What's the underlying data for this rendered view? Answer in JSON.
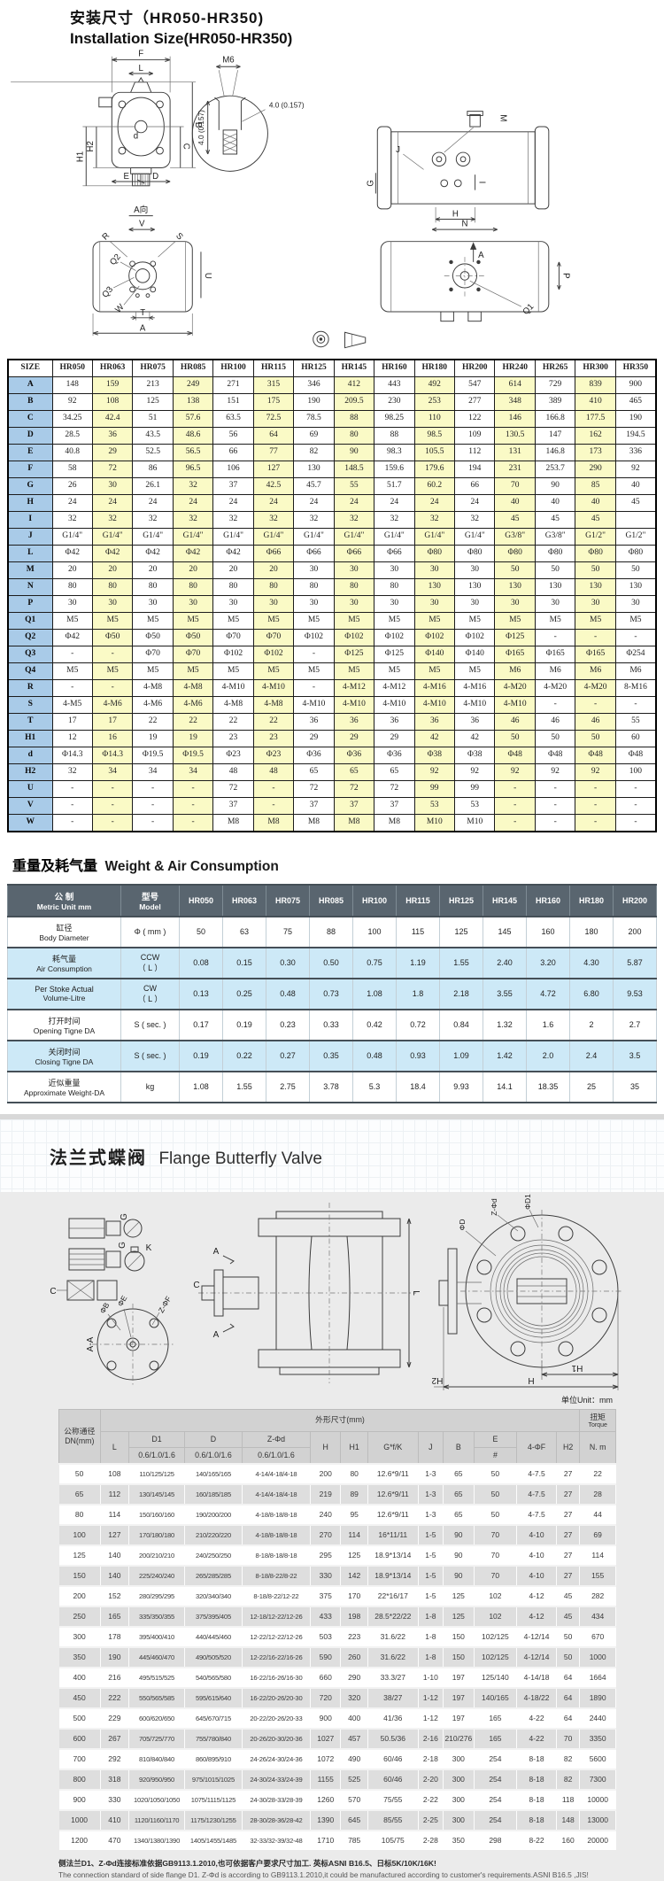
{
  "page": {
    "title_cn": "安装尺寸（HR050-HR350)",
    "title_en": "Installation Size(HR050-HR350)"
  },
  "drawing1": {
    "f": "F",
    "l": "L",
    "b": "B",
    "c": "C",
    "d_small": "d",
    "h2": "H2",
    "h1": "H1",
    "e": "E",
    "d_dim": "D",
    "a_view": "A向",
    "m6": "M6",
    "dim40": "4.0 (0.157)",
    "dim40v": "4.0 (0.157)",
    "m": "M",
    "g": "G",
    "h": "H",
    "i": "I",
    "j": "J",
    "a": "A",
    "v": "V",
    "r": "R",
    "s": "S",
    "q2": "Q2",
    "q3": "Q3",
    "w": "W",
    "t": "T",
    "u": "U",
    "n": "N",
    "p": "P",
    "q1": "Q1",
    "a2": "A"
  },
  "size_table": {
    "header": [
      "SIZE",
      "HR050",
      "HR063",
      "HR075",
      "HR085",
      "HR100",
      "HR115",
      "HR125",
      "HR145",
      "HR160",
      "HR180",
      "HR200",
      "HR240",
      "HR265",
      "HR300",
      "HR350"
    ],
    "rows": [
      {
        "label": "A",
        "values": [
          "148",
          "159",
          "213",
          "249",
          "271",
          "315",
          "346",
          "412",
          "443",
          "492",
          "547",
          "614",
          "729",
          "839",
          "900"
        ]
      },
      {
        "label": "B",
        "values": [
          "92",
          "108",
          "125",
          "138",
          "151",
          "175",
          "190",
          "209.5",
          "230",
          "253",
          "277",
          "348",
          "389",
          "410",
          "465"
        ]
      },
      {
        "label": "C",
        "values": [
          "34.25",
          "42.4",
          "51",
          "57.6",
          "63.5",
          "72.5",
          "78.5",
          "88",
          "98.25",
          "110",
          "122",
          "146",
          "166.8",
          "177.5",
          "190"
        ]
      },
      {
        "label": "D",
        "values": [
          "28.5",
          "36",
          "43.5",
          "48.6",
          "56",
          "64",
          "69",
          "80",
          "88",
          "98.5",
          "109",
          "130.5",
          "147",
          "162",
          "194.5"
        ]
      },
      {
        "label": "E",
        "values": [
          "40.8",
          "29",
          "52.5",
          "56.5",
          "66",
          "77",
          "82",
          "90",
          "98.3",
          "105.5",
          "112",
          "131",
          "146.8",
          "173",
          "336"
        ]
      },
      {
        "label": "F",
        "values": [
          "58",
          "72",
          "86",
          "96.5",
          "106",
          "127",
          "130",
          "148.5",
          "159.6",
          "179.6",
          "194",
          "231",
          "253.7",
          "290",
          "92"
        ]
      },
      {
        "label": "G",
        "values": [
          "26",
          "30",
          "26.1",
          "32",
          "37",
          "42.5",
          "45.7",
          "55",
          "51.7",
          "60.2",
          "66",
          "70",
          "90",
          "85",
          "40"
        ]
      },
      {
        "label": "H",
        "values": [
          "24",
          "24",
          "24",
          "24",
          "24",
          "24",
          "24",
          "24",
          "24",
          "24",
          "24",
          "40",
          "40",
          "40",
          "45"
        ]
      },
      {
        "label": "I",
        "values": [
          "32",
          "32",
          "32",
          "32",
          "32",
          "32",
          "32",
          "32",
          "32",
          "32",
          "32",
          "45",
          "45",
          "45",
          ""
        ]
      },
      {
        "label": "J",
        "values": [
          "G1/4\"",
          "G1/4\"",
          "G1/4\"",
          "G1/4\"",
          "G1/4\"",
          "G1/4\"",
          "G1/4\"",
          "G1/4\"",
          "G1/4\"",
          "G1/4\"",
          "G1/4\"",
          "G3/8\"",
          "G3/8\"",
          "G1/2\"",
          "G1/2\""
        ]
      },
      {
        "label": "L",
        "values": [
          "Φ42",
          "Φ42",
          "Φ42",
          "Φ42",
          "Φ42",
          "Φ66",
          "Φ66",
          "Φ66",
          "Φ66",
          "Φ80",
          "Φ80",
          "Φ80",
          "Φ80",
          "Φ80",
          "Φ80"
        ]
      },
      {
        "label": "M",
        "values": [
          "20",
          "20",
          "20",
          "20",
          "20",
          "20",
          "30",
          "30",
          "30",
          "30",
          "30",
          "50",
          "50",
          "50",
          "50"
        ]
      },
      {
        "label": "N",
        "values": [
          "80",
          "80",
          "80",
          "80",
          "80",
          "80",
          "80",
          "80",
          "80",
          "130",
          "130",
          "130",
          "130",
          "130",
          "130"
        ]
      },
      {
        "label": "P",
        "values": [
          "30",
          "30",
          "30",
          "30",
          "30",
          "30",
          "30",
          "30",
          "30",
          "30",
          "30",
          "30",
          "30",
          "30",
          "30"
        ]
      },
      {
        "label": "Q1",
        "values": [
          "M5",
          "M5",
          "M5",
          "M5",
          "M5",
          "M5",
          "M5",
          "M5",
          "M5",
          "M5",
          "M5",
          "M5",
          "M5",
          "M5",
          "M5"
        ]
      },
      {
        "label": "Q2",
        "values": [
          "Φ42",
          "Φ50",
          "Φ50",
          "Φ50",
          "Φ70",
          "Φ70",
          "Φ102",
          "Φ102",
          "Φ102",
          "Φ102",
          "Φ102",
          "Φ125",
          "-",
          "-",
          "-"
        ]
      },
      {
        "label": "Q3",
        "values": [
          "-",
          "-",
          "Φ70",
          "Φ70",
          "Φ102",
          "Φ102",
          "-",
          "Φ125",
          "Φ125",
          "Φ140",
          "Φ140",
          "Φ165",
          "Φ165",
          "Φ165",
          "Φ254"
        ]
      },
      {
        "label": "Q4",
        "values": [
          "M5",
          "M5",
          "M5",
          "M5",
          "M5",
          "M5",
          "M5",
          "M5",
          "M5",
          "M5",
          "M5",
          "M6",
          "M6",
          "M6",
          "M6"
        ]
      },
      {
        "label": "R",
        "values": [
          "-",
          "-",
          "4-M8",
          "4-M8",
          "4-M10",
          "4-M10",
          "-",
          "4-M12",
          "4-M12",
          "4-M16",
          "4-M16",
          "4-M20",
          "4-M20",
          "4-M20",
          "8-M16"
        ]
      },
      {
        "label": "S",
        "values": [
          "4-M5",
          "4-M6",
          "4-M6",
          "4-M6",
          "4-M8",
          "4-M8",
          "4-M10",
          "4-M10",
          "4-M10",
          "4-M10",
          "4-M10",
          "4-M10",
          "-",
          "-",
          "-"
        ]
      },
      {
        "label": "T",
        "values": [
          "17",
          "17",
          "22",
          "22",
          "22",
          "22",
          "36",
          "36",
          "36",
          "36",
          "36",
          "46",
          "46",
          "46",
          "55"
        ]
      },
      {
        "label": "H1",
        "values": [
          "12",
          "16",
          "19",
          "19",
          "23",
          "23",
          "29",
          "29",
          "29",
          "42",
          "42",
          "50",
          "50",
          "50",
          "60"
        ]
      },
      {
        "label": "d",
        "values": [
          "Φ14.3",
          "Φ14.3",
          "Φ19.5",
          "Φ19.5",
          "Φ23",
          "Φ23",
          "Φ36",
          "Φ36",
          "Φ36",
          "Φ38",
          "Φ38",
          "Φ48",
          "Φ48",
          "Φ48",
          "Φ48"
        ]
      },
      {
        "label": "H2",
        "values": [
          "32",
          "34",
          "34",
          "34",
          "48",
          "48",
          "65",
          "65",
          "65",
          "92",
          "92",
          "92",
          "92",
          "92",
          "100"
        ]
      },
      {
        "label": "U",
        "values": [
          "-",
          "-",
          "-",
          "-",
          "72",
          "-",
          "72",
          "72",
          "72",
          "99",
          "99",
          "-",
          "-",
          "-",
          "-"
        ]
      },
      {
        "label": "V",
        "values": [
          "-",
          "-",
          "-",
          "-",
          "37",
          "-",
          "37",
          "37",
          "37",
          "53",
          "53",
          "-",
          "-",
          "-",
          "-"
        ]
      },
      {
        "label": "W",
        "values": [
          "-",
          "-",
          "-",
          "-",
          "M8",
          "M8",
          "M8",
          "M8",
          "M8",
          "M10",
          "M10",
          "-",
          "-",
          "-",
          "-"
        ]
      }
    ]
  },
  "weight_section": {
    "title_cn": "重量及耗气量",
    "title_en": "Weight & Air Consumption"
  },
  "weight_table": {
    "col1_cn": "公 制",
    "col1_en": "Metric Unit mm",
    "col2_cn": "型号",
    "col2_en": "Model",
    "models": [
      "HR050",
      "HR063",
      "HR075",
      "HR085",
      "HR100",
      "HR115",
      "HR125",
      "HR145",
      "HR160",
      "HR180",
      "HR200"
    ],
    "rows": [
      {
        "name_cn": "缸径",
        "name_en": "Body Diameter",
        "unit": "Φ ( mm )",
        "shaded": false,
        "values": [
          "50",
          "63",
          "75",
          "88",
          "100",
          "115",
          "125",
          "145",
          "160",
          "180",
          "200"
        ]
      },
      {
        "name_cn": "耗气量",
        "name_en": "Air Consumption",
        "unit": "CCW\n（ L ）",
        "shaded": true,
        "values": [
          "0.08",
          "0.15",
          "0.30",
          "0.50",
          "0.75",
          "1.19",
          "1.55",
          "2.40",
          "3.20",
          "4.30",
          "5.87"
        ]
      },
      {
        "name_cn": "Per Stoke Actual",
        "name_en": "Volume-Litre",
        "unit": "CW\n（ L ）",
        "shaded": true,
        "values": [
          "0.13",
          "0.25",
          "0.48",
          "0.73",
          "1.08",
          "1.8",
          "2.18",
          "3.55",
          "4.72",
          "6.80",
          "9.53"
        ]
      },
      {
        "name_cn": "打开时间",
        "name_en": "Opening Tigne DA",
        "unit": "S ( sec. )",
        "shaded": false,
        "values": [
          "0.17",
          "0.19",
          "0.23",
          "0.33",
          "0.42",
          "0.72",
          "0.84",
          "1.32",
          "1.6",
          "2",
          "2.7"
        ]
      },
      {
        "name_cn": "关闭时间",
        "name_en": "Closing Tigne DA",
        "unit": "S ( sec. )",
        "shaded": true,
        "values": [
          "0.19",
          "0.22",
          "0.27",
          "0.35",
          "0.48",
          "0.93",
          "1.09",
          "1.42",
          "2.0",
          "2.4",
          "3.5"
        ]
      },
      {
        "name_cn": "近似重量",
        "name_en": "Approximate Weight-DA",
        "unit": "kg",
        "shaded": false,
        "values": [
          "1.08",
          "1.55",
          "2.75",
          "3.78",
          "5.3",
          "18.4",
          "9.93",
          "14.1",
          "18.35",
          "25",
          "35"
        ]
      }
    ]
  },
  "valve_section": {
    "title_cn": "法兰式蝶阀",
    "title_en": "Flange Butterfly Valve",
    "unit_note": "单位Unit：mm"
  },
  "drawing2": {
    "aa": "A-A",
    "phib": "ΦB",
    "phie": "ΦE",
    "zphif": "Z-ΦF",
    "c": "C",
    "g": "G",
    "k": "K",
    "a1": "A",
    "a2": "A",
    "l": "L",
    "phid": "ΦD",
    "zphid": "Z-Φd",
    "phid1": "ΦD1",
    "h": "H",
    "h1": "H1",
    "h2": "H2"
  },
  "dn_table": {
    "header": {
      "dn_cn": "公称通径",
      "dn_en": "DN(mm)",
      "dims_group": "外形尺寸(mm)",
      "torque_cn": "扭矩",
      "torque_en": "Torque",
      "cols": [
        "L",
        "D1",
        "D",
        "Z-Φd",
        "H",
        "H1",
        "G*f/K",
        "J",
        "B",
        "E",
        "4-ΦF",
        "H2",
        "N. m"
      ],
      "sub": "0.6/1.0/1.6",
      "e_sub": "#"
    },
    "rows": [
      [
        "50",
        "108",
        "110/125/125",
        "140/165/165",
        "4-14/4-18/4-18",
        "200",
        "80",
        "12.6*9/11",
        "1-3",
        "65",
        "50",
        "4-7.5",
        "27",
        "22"
      ],
      [
        "65",
        "112",
        "130/145/145",
        "160/185/185",
        "4-14/4-18/4-18",
        "219",
        "89",
        "12.6*9/11",
        "1-3",
        "65",
        "50",
        "4-7.5",
        "27",
        "28"
      ],
      [
        "80",
        "114",
        "150/160/160",
        "190/200/200",
        "4-18/8-18/8-18",
        "240",
        "95",
        "12.6*9/11",
        "1-3",
        "65",
        "50",
        "4-7.5",
        "27",
        "44"
      ],
      [
        "100",
        "127",
        "170/180/180",
        "210/220/220",
        "4-18/8-18/8-18",
        "270",
        "114",
        "16*11/11",
        "1-5",
        "90",
        "70",
        "4-10",
        "27",
        "69"
      ],
      [
        "125",
        "140",
        "200/210/210",
        "240/250/250",
        "8-18/8-18/8-18",
        "295",
        "125",
        "18.9*13/14",
        "1-5",
        "90",
        "70",
        "4-10",
        "27",
        "114"
      ],
      [
        "150",
        "140",
        "225/240/240",
        "265/285/285",
        "8-18/8-22/8-22",
        "330",
        "142",
        "18.9*13/14",
        "1-5",
        "90",
        "70",
        "4-10",
        "27",
        "155"
      ],
      [
        "200",
        "152",
        "280/295/295",
        "320/340/340",
        "8-18/8-22/12-22",
        "375",
        "170",
        "22*16/17",
        "1-5",
        "125",
        "102",
        "4-12",
        "45",
        "282"
      ],
      [
        "250",
        "165",
        "335/350/355",
        "375/395/405",
        "12-18/12-22/12-26",
        "433",
        "198",
        "28.5*22/22",
        "1-8",
        "125",
        "102",
        "4-12",
        "45",
        "434"
      ],
      [
        "300",
        "178",
        "395/400/410",
        "440/445/460",
        "12-22/12-22/12-26",
        "503",
        "223",
        "31.6/22",
        "1-8",
        "150",
        "102/125",
        "4-12/14",
        "50",
        "670"
      ],
      [
        "350",
        "190",
        "445/460/470",
        "490/505/520",
        "12-22/16-22/16-26",
        "590",
        "260",
        "31.6/22",
        "1-8",
        "150",
        "102/125",
        "4-12/14",
        "50",
        "1000"
      ],
      [
        "400",
        "216",
        "495/515/525",
        "540/565/580",
        "16-22/16-26/16-30",
        "660",
        "290",
        "33.3/27",
        "1-10",
        "197",
        "125/140",
        "4-14/18",
        "64",
        "1664"
      ],
      [
        "450",
        "222",
        "550/565/585",
        "595/615/640",
        "16-22/20-26/20-30",
        "720",
        "320",
        "38/27",
        "1-12",
        "197",
        "140/165",
        "4-18/22",
        "64",
        "1890"
      ],
      [
        "500",
        "229",
        "600/620/650",
        "645/670/715",
        "20-22/20-26/20-33",
        "900",
        "400",
        "41/36",
        "1-12",
        "197",
        "165",
        "4-22",
        "64",
        "2440"
      ],
      [
        "600",
        "267",
        "705/725/770",
        "755/780/840",
        "20-26/20-30/20-36",
        "1027",
        "457",
        "50.5/36",
        "2-16",
        "210/276",
        "165",
        "4-22",
        "70",
        "3350"
      ],
      [
        "700",
        "292",
        "810/840/840",
        "860/895/910",
        "24-26/24-30/24-36",
        "1072",
        "490",
        "60/46",
        "2-18",
        "300",
        "254",
        "8-18",
        "82",
        "5600"
      ],
      [
        "800",
        "318",
        "920/950/950",
        "975/1015/1025",
        "24-30/24-33/24-39",
        "1155",
        "525",
        "60/46",
        "2-20",
        "300",
        "254",
        "8-18",
        "82",
        "7300"
      ],
      [
        "900",
        "330",
        "1020/1050/1050",
        "1075/1115/1125",
        "24-30/28-33/28-39",
        "1260",
        "570",
        "75/55",
        "2-22",
        "300",
        "254",
        "8-18",
        "118",
        "10000"
      ],
      [
        "1000",
        "410",
        "1120/1160/1170",
        "1175/1230/1255",
        "28-30/28-36/28-42",
        "1390",
        "645",
        "85/55",
        "2-25",
        "300",
        "254",
        "8-18",
        "148",
        "13000"
      ],
      [
        "1200",
        "470",
        "1340/1380/1390",
        "1405/1455/1485",
        "32-33/32-39/32-48",
        "1710",
        "785",
        "105/75",
        "2-28",
        "350",
        "298",
        "8-22",
        "160",
        "20000"
      ]
    ]
  },
  "footer": {
    "line_cn": "侧法兰D1、Z-Φd连接标准依据GB9113.1.2010,也可依据客户要求尺寸加工. 英标ASNI B16.5、日标5K/10K/16K!",
    "line_en": "The connection standard of side flange D1. Z-Φd is according to GB9113.1.2010,it could be manufactured according to customer's requirements.ASNI B16.5 ,JIS!"
  },
  "colors": {
    "size_header_bg": "#c2c2c2",
    "size_label_col_bg": "#a9cbe8",
    "size_stripe_bg": "#fafac6",
    "weight_header_bg": "#59656f",
    "weight_stripe_bg": "#cde9f7",
    "dn_header_bg": "#d2d2d2",
    "dn_stripe_bg": "#dedede",
    "panel_bg": "#ebebeb"
  }
}
